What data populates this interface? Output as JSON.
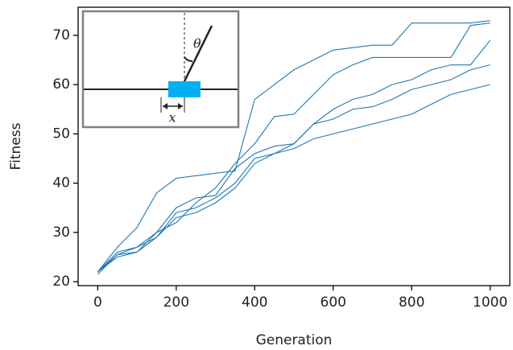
{
  "chart_data": {
    "type": "line",
    "x_label": "Generation",
    "y_label": "Fitness",
    "inset_labels": [
      "θ",
      "x"
    ],
    "x": [
      0,
      50,
      100,
      150,
      200,
      250,
      300,
      350,
      400,
      450,
      500,
      550,
      600,
      650,
      700,
      750,
      800,
      850,
      900,
      950,
      1000
    ],
    "series": [
      {
        "color": "#1f77b4",
        "values": [
          22,
          27,
          31,
          38,
          41,
          41.5,
          42,
          42.5,
          57,
          60,
          63,
          65,
          67,
          67.5,
          68,
          68,
          72.5,
          72.5,
          72.5,
          72.5,
          73
        ]
      },
      {
        "color": "#1f77b4",
        "values": [
          22,
          26,
          27,
          30,
          32,
          36,
          39,
          44,
          48,
          53.5,
          54,
          58,
          62,
          64,
          65.5,
          65.5,
          65.5,
          65.5,
          65.5,
          72,
          72.5
        ]
      },
      {
        "color": "#1f77b4",
        "values": [
          21.5,
          25.5,
          26,
          30,
          35,
          37,
          37.5,
          43,
          46,
          47.5,
          48,
          52,
          55,
          57,
          58,
          60,
          61,
          63,
          64,
          64,
          69
        ]
      },
      {
        "color": "#1f77b4",
        "values": [
          22,
          25.5,
          27,
          29,
          34,
          35,
          37,
          40,
          45,
          46,
          48,
          52,
          53,
          55,
          55.5,
          57,
          59,
          60,
          61,
          63,
          64
        ]
      },
      {
        "color": "#1f77b4",
        "values": [
          22,
          25,
          26,
          29,
          33,
          34,
          36,
          39,
          44,
          46,
          47,
          49,
          50,
          51,
          52,
          53,
          54,
          56,
          58,
          59,
          60
        ]
      }
    ],
    "xlim": [
      -50,
      1050
    ],
    "ylim": [
      19.2,
      75.7
    ],
    "xticks": [
      0,
      200,
      400,
      600,
      800,
      1000
    ],
    "yticks": [
      20,
      30,
      40,
      50,
      60,
      70
    ]
  }
}
